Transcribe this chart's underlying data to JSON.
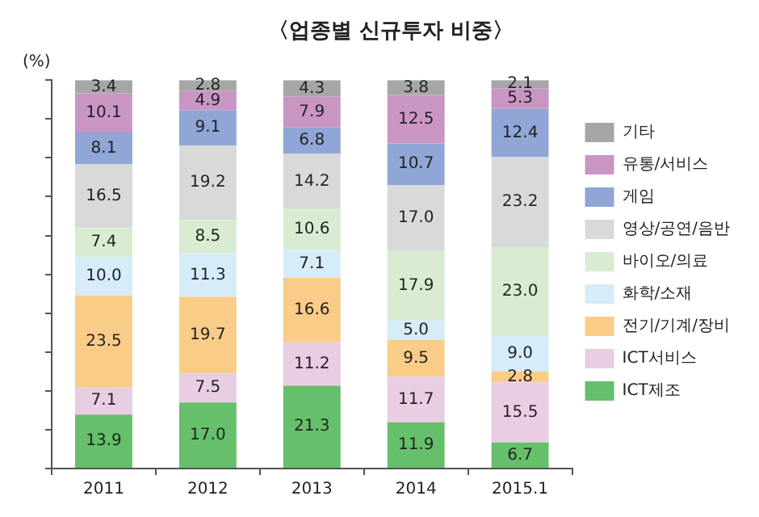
{
  "chart_data": {
    "type": "bar",
    "title": "〈업종별 신규투자 비중〉",
    "ylabel": "(%)",
    "categories": [
      "2011",
      "2012",
      "2013",
      "2014",
      "2015.1"
    ],
    "stacked": true,
    "legend": "right",
    "grid": false,
    "tick_labels": "x",
    "ylim": [
      0,
      100
    ],
    "yticks": [
      {
        "value": 0,
        "label": null
      },
      {
        "value": 10,
        "label": null
      },
      {
        "value": 20,
        "label": null
      },
      {
        "value": 30,
        "label": null
      },
      {
        "value": 40,
        "label": null
      },
      {
        "value": 50,
        "label": null
      },
      {
        "value": 60,
        "label": null
      },
      {
        "value": 70,
        "label": null
      },
      {
        "value": 80,
        "label": null
      },
      {
        "value": 90,
        "label": null
      },
      {
        "value": 100,
        "label": null
      }
    ],
    "series": [
      {
        "name": "ICT제조",
        "color": "#66bf6a",
        "values": [
          13.9,
          17.0,
          21.3,
          11.9,
          6.7
        ],
        "value_labels": [
          "13.9",
          "17.0",
          "21.3",
          "11.9",
          "6.7"
        ]
      },
      {
        "name": "ICT서비스",
        "color": "#e8cde3",
        "values": [
          7.1,
          7.5,
          11.2,
          11.7,
          15.5
        ],
        "value_labels": [
          "7.1",
          "7.5",
          "11.2",
          "11.7",
          "15.5"
        ]
      },
      {
        "name": "전기/기계/장비",
        "color": "#f9cc88",
        "values": [
          23.5,
          19.7,
          16.6,
          9.5,
          2.8
        ],
        "value_labels": [
          "23.5",
          "19.7",
          "16.6",
          "9.5",
          "2.8"
        ]
      },
      {
        "name": "화학/소재",
        "color": "#d6ecf8",
        "values": [
          10.0,
          11.3,
          7.1,
          5.0,
          9.0
        ],
        "value_labels": [
          "10.0",
          "11.3",
          "7.1",
          "5.0",
          "9.0"
        ]
      },
      {
        "name": "바이오/의료",
        "color": "#d9ecd2",
        "values": [
          7.4,
          8.5,
          10.6,
          17.9,
          23.0
        ],
        "value_labels": [
          "7.4",
          "8.5",
          "10.6",
          "17.9",
          "23.0"
        ]
      },
      {
        "name": "영상/공연/음반",
        "color": "#d9d9d9",
        "values": [
          16.5,
          19.2,
          14.2,
          17.0,
          23.2
        ],
        "value_labels": [
          "16.5",
          "19.2",
          "14.2",
          "17.0",
          "23.2"
        ]
      },
      {
        "name": "게임",
        "color": "#8fa6d6",
        "values": [
          8.1,
          9.1,
          6.8,
          10.7,
          12.4
        ],
        "value_labels": [
          "8.1",
          "9.1",
          "6.8",
          "10.7",
          "12.4"
        ]
      },
      {
        "name": "유통/서비스",
        "color": "#c996c4",
        "values": [
          10.1,
          4.9,
          7.9,
          12.5,
          5.3
        ],
        "value_labels": [
          "10.1",
          "4.9",
          "7.9",
          "12.5",
          "5.3"
        ]
      },
      {
        "name": "기타",
        "color": "#a6a6a6",
        "values": [
          3.4,
          2.8,
          4.3,
          3.8,
          2.1
        ],
        "value_labels": [
          "3.4",
          "2.8",
          "4.3",
          "3.8",
          "2.1"
        ]
      }
    ]
  }
}
